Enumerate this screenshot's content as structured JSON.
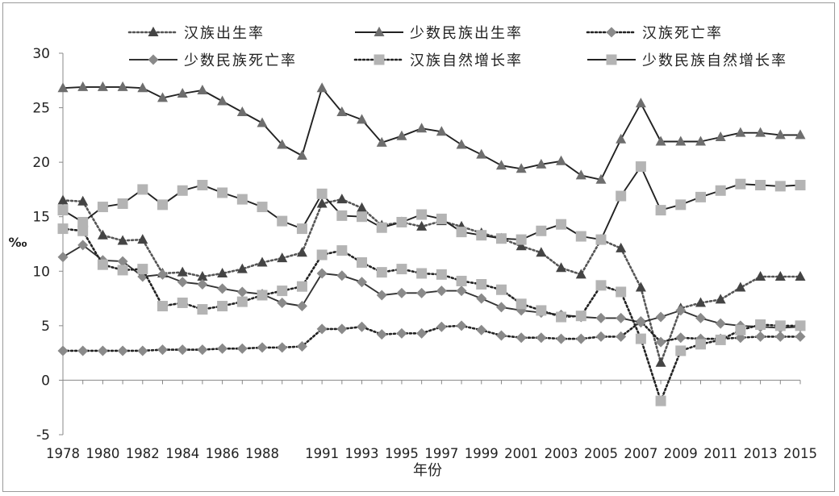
{
  "chart_data": {
    "type": "line",
    "xlabel": "年份",
    "ylabel": "‰",
    "ylim": [
      -5,
      30
    ],
    "yticks": [
      -5,
      0,
      5,
      10,
      15,
      20,
      25,
      30
    ],
    "xtick_labels": [
      "1978",
      "1980",
      "1982",
      "1984",
      "1986",
      "1988",
      "1991",
      "1993",
      "1995",
      "1997",
      "1999",
      "2001",
      "2003",
      "2005",
      "2007",
      "2009",
      "2011",
      "2013",
      "2015"
    ],
    "x": [
      "1978",
      "1979",
      "1980",
      "1981",
      "1982",
      "1983",
      "1984",
      "1985",
      "1986",
      "1987",
      "1988",
      "1989",
      "1990",
      "1991",
      "1992",
      "1993",
      "1994",
      "1995",
      "1996",
      "1997",
      "1998",
      "1999",
      "2000",
      "2001",
      "2002",
      "2003",
      "2004",
      "2005",
      "2006",
      "2007",
      "2008",
      "2009",
      "2010",
      "2011",
      "2012",
      "2013",
      "2014",
      "2015"
    ],
    "legend_position": "top",
    "series": [
      {
        "name": "汉族出生率",
        "color": "#555555",
        "dash": "2,3",
        "marker": "triangle",
        "values": [
          16.5,
          16.4,
          13.3,
          12.8,
          12.9,
          9.8,
          9.9,
          9.5,
          9.8,
          10.2,
          10.8,
          11.2,
          11.7,
          16.2,
          16.6,
          15.8,
          14.2,
          14.5,
          14.1,
          14.6,
          14.1,
          13.5,
          13.0,
          12.3,
          11.7,
          10.3,
          9.7,
          12.9,
          12.1,
          8.5,
          1.6,
          6.6,
          7.1,
          7.4,
          8.5,
          9.5,
          9.5,
          9.5
        ]
      },
      {
        "name": "少数民族出生率",
        "color": "#222222",
        "dash": "",
        "marker": "triangle",
        "values": [
          26.8,
          26.9,
          26.9,
          26.9,
          26.8,
          25.9,
          26.3,
          26.6,
          25.6,
          24.6,
          23.6,
          21.6,
          20.6,
          26.8,
          24.6,
          23.9,
          21.8,
          22.4,
          23.1,
          22.8,
          21.6,
          20.7,
          19.7,
          19.4,
          19.8,
          20.1,
          18.8,
          18.4,
          22.1,
          25.4,
          21.9,
          21.9,
          21.9,
          22.3,
          22.7,
          22.7,
          22.5,
          22.5
        ]
      },
      {
        "name": "汉族死亡率",
        "color": "#222222",
        "dash": "2,3",
        "marker": "diamond",
        "values": [
          2.7,
          2.7,
          2.7,
          2.7,
          2.7,
          2.8,
          2.8,
          2.8,
          2.9,
          2.9,
          3.0,
          3.0,
          3.1,
          4.7,
          4.7,
          4.9,
          4.2,
          4.3,
          4.3,
          4.9,
          5.0,
          4.6,
          4.1,
          3.9,
          3.9,
          3.8,
          3.8,
          4.0,
          4.0,
          5.4,
          3.5,
          3.9,
          3.8,
          3.8,
          3.9,
          4.0,
          4.0,
          4.0
        ]
      },
      {
        "name": "少数民族死亡率",
        "color": "#333333",
        "dash": "",
        "marker": "diamond",
        "values": [
          11.3,
          12.4,
          11.0,
          10.9,
          9.5,
          9.7,
          9.0,
          8.8,
          8.4,
          8.1,
          7.9,
          7.1,
          6.8,
          9.8,
          9.6,
          9.0,
          7.8,
          8.0,
          8.0,
          8.2,
          8.2,
          7.5,
          6.7,
          6.4,
          6.2,
          6.0,
          5.8,
          5.7,
          5.7,
          5.3,
          5.8,
          6.4,
          5.7,
          5.2,
          5.0,
          4.9,
          4.8,
          4.9
        ]
      },
      {
        "name": "汉族自然增长率",
        "color": "#222222",
        "dash": "2,3",
        "marker": "square",
        "values": [
          13.9,
          13.7,
          10.6,
          10.1,
          10.2,
          6.8,
          7.1,
          6.5,
          6.8,
          7.2,
          7.8,
          8.2,
          8.6,
          11.5,
          11.9,
          10.8,
          9.9,
          10.2,
          9.8,
          9.7,
          9.1,
          8.8,
          8.3,
          7.0,
          6.4,
          5.8,
          5.9,
          8.7,
          8.1,
          3.8,
          -1.9,
          2.7,
          3.3,
          3.7,
          4.6,
          5.1,
          5.0,
          5.0
        ]
      },
      {
        "name": "少数民族自然增长率",
        "color": "#222222",
        "dash": "",
        "marker": "square",
        "values": [
          15.6,
          14.5,
          15.9,
          16.2,
          17.5,
          16.1,
          17.4,
          17.9,
          17.2,
          16.6,
          15.9,
          14.6,
          13.9,
          17.1,
          15.1,
          15.0,
          14.0,
          14.5,
          15.2,
          14.8,
          13.6,
          13.3,
          13.0,
          12.9,
          13.7,
          14.3,
          13.2,
          12.9,
          16.9,
          19.6,
          15.6,
          16.1,
          16.8,
          17.4,
          18.0,
          17.9,
          17.8,
          17.9
        ]
      }
    ]
  }
}
